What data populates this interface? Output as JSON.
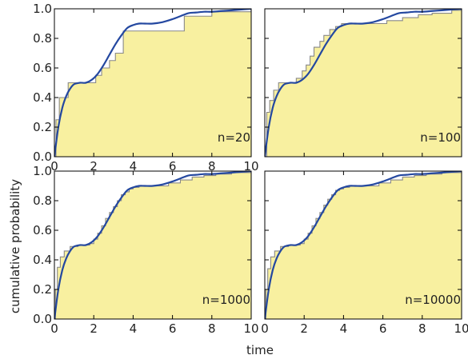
{
  "figure": {
    "xlabel": "time",
    "ylabel": "cumulative probability"
  },
  "colors": {
    "fill": "#f8f0a0",
    "step": "#888888",
    "cdf": "#2448a0",
    "axes": "#000000"
  },
  "chart_data": [
    {
      "type": "area",
      "annotation": "n=20",
      "xlim": [
        0,
        10
      ],
      "ylim": [
        0,
        1
      ],
      "xticks": [
        "0",
        "2",
        "4",
        "6",
        "8",
        "10"
      ],
      "yticks": [
        "0.0",
        "0.2",
        "0.4",
        "0.6",
        "0.8",
        "1.0"
      ],
      "grid": false,
      "empirical_cdf": {
        "x": [
          0,
          0.08,
          0.25,
          0.7,
          1.8,
          2.1,
          2.4,
          2.8,
          3.1,
          3.5,
          4.6,
          6.6,
          7.4,
          8.0,
          10
        ],
        "y": [
          0,
          0.25,
          0.4,
          0.5,
          0.5,
          0.55,
          0.6,
          0.65,
          0.7,
          0.85,
          0.85,
          0.95,
          0.95,
          0.98,
          1.0
        ]
      },
      "true_cdf": {
        "x": [
          0,
          0.2,
          0.4,
          0.6,
          0.8,
          1.0,
          1.3,
          1.6,
          1.9,
          2.2,
          2.5,
          2.8,
          3.1,
          3.4,
          3.7,
          4.0,
          4.3,
          4.6,
          5.0,
          5.5,
          6.0,
          6.4,
          6.8,
          7.2,
          7.6,
          8.0,
          8.5,
          9.0,
          9.5,
          10.0
        ],
        "y": [
          0,
          0.2,
          0.33,
          0.41,
          0.46,
          0.49,
          0.5,
          0.5,
          0.52,
          0.56,
          0.62,
          0.69,
          0.76,
          0.82,
          0.87,
          0.89,
          0.9,
          0.9,
          0.9,
          0.91,
          0.93,
          0.95,
          0.97,
          0.975,
          0.98,
          0.98,
          0.985,
          0.99,
          0.995,
          1.0
        ]
      }
    },
    {
      "type": "area",
      "annotation": "n=100",
      "xlim": [
        0,
        10
      ],
      "ylim": [
        0,
        1
      ],
      "xticks": [],
      "yticks": [],
      "grid": false,
      "empirical_cdf": {
        "x": [
          0,
          0.1,
          0.25,
          0.45,
          0.7,
          1.3,
          1.6,
          1.9,
          2.1,
          2.3,
          2.5,
          2.8,
          3.0,
          3.3,
          3.6,
          3.9,
          4.3,
          5.5,
          6.2,
          7.0,
          7.8,
          8.5,
          9.5,
          10
        ],
        "y": [
          0,
          0.3,
          0.38,
          0.45,
          0.5,
          0.5,
          0.53,
          0.58,
          0.62,
          0.68,
          0.74,
          0.78,
          0.82,
          0.86,
          0.88,
          0.9,
          0.9,
          0.9,
          0.92,
          0.94,
          0.96,
          0.97,
          0.99,
          1.0
        ]
      },
      "true_cdf": {
        "x": [
          0,
          0.2,
          0.4,
          0.6,
          0.8,
          1.0,
          1.3,
          1.6,
          1.9,
          2.2,
          2.5,
          2.8,
          3.1,
          3.4,
          3.7,
          4.0,
          4.3,
          4.6,
          5.0,
          5.5,
          6.0,
          6.4,
          6.8,
          7.2,
          7.6,
          8.0,
          8.5,
          9.0,
          9.5,
          10.0
        ],
        "y": [
          0,
          0.2,
          0.33,
          0.41,
          0.46,
          0.49,
          0.5,
          0.5,
          0.52,
          0.56,
          0.62,
          0.69,
          0.76,
          0.82,
          0.87,
          0.89,
          0.9,
          0.9,
          0.9,
          0.91,
          0.93,
          0.95,
          0.97,
          0.975,
          0.98,
          0.98,
          0.985,
          0.99,
          0.995,
          1.0
        ]
      }
    },
    {
      "type": "area",
      "annotation": "n=1000",
      "xlim": [
        0,
        10
      ],
      "ylim": [
        0,
        1
      ],
      "xticks": [
        "0",
        "2",
        "4",
        "6",
        "8",
        "10"
      ],
      "yticks": [
        "0.0",
        "0.2",
        "0.4",
        "0.6",
        "0.8",
        "1.0"
      ],
      "grid": false,
      "empirical_cdf": {
        "x": [
          0,
          0.05,
          0.15,
          0.3,
          0.5,
          0.8,
          1.2,
          1.5,
          1.8,
          2.0,
          2.2,
          2.4,
          2.6,
          2.8,
          3.0,
          3.2,
          3.4,
          3.6,
          3.8,
          4.0,
          4.3,
          4.7,
          5.2,
          5.8,
          6.4,
          7.0,
          7.6,
          8.2,
          9.0,
          10
        ],
        "y": [
          0,
          0.2,
          0.35,
          0.42,
          0.46,
          0.49,
          0.5,
          0.5,
          0.51,
          0.54,
          0.58,
          0.63,
          0.68,
          0.72,
          0.76,
          0.8,
          0.84,
          0.86,
          0.88,
          0.89,
          0.9,
          0.9,
          0.9,
          0.92,
          0.94,
          0.96,
          0.97,
          0.98,
          0.99,
          1.0
        ]
      },
      "true_cdf": {
        "x": [
          0,
          0.2,
          0.4,
          0.6,
          0.8,
          1.0,
          1.3,
          1.6,
          1.9,
          2.2,
          2.5,
          2.8,
          3.1,
          3.4,
          3.7,
          4.0,
          4.3,
          4.6,
          5.0,
          5.5,
          6.0,
          6.4,
          6.8,
          7.2,
          7.6,
          8.0,
          8.5,
          9.0,
          9.5,
          10.0
        ],
        "y": [
          0,
          0.2,
          0.33,
          0.41,
          0.46,
          0.49,
          0.5,
          0.5,
          0.52,
          0.56,
          0.62,
          0.69,
          0.76,
          0.82,
          0.87,
          0.89,
          0.9,
          0.9,
          0.9,
          0.91,
          0.93,
          0.95,
          0.97,
          0.975,
          0.98,
          0.98,
          0.985,
          0.99,
          0.995,
          1.0
        ]
      }
    },
    {
      "type": "area",
      "annotation": "n=10000",
      "xlim": [
        0,
        10
      ],
      "ylim": [
        0,
        1
      ],
      "xticks": [
        "0",
        "2",
        "4",
        "6",
        "8",
        "10"
      ],
      "yticks": [],
      "grid": false,
      "empirical_cdf": {
        "x": [
          0,
          0.05,
          0.15,
          0.3,
          0.5,
          0.8,
          1.2,
          1.5,
          1.8,
          2.0,
          2.2,
          2.4,
          2.6,
          2.8,
          3.0,
          3.2,
          3.4,
          3.6,
          3.8,
          4.0,
          4.3,
          4.7,
          5.2,
          5.8,
          6.4,
          7.0,
          7.6,
          8.2,
          9.0,
          10
        ],
        "y": [
          0,
          0.2,
          0.34,
          0.42,
          0.46,
          0.49,
          0.5,
          0.5,
          0.51,
          0.54,
          0.58,
          0.63,
          0.68,
          0.72,
          0.77,
          0.81,
          0.84,
          0.87,
          0.88,
          0.89,
          0.9,
          0.9,
          0.9,
          0.92,
          0.94,
          0.96,
          0.97,
          0.98,
          0.99,
          1.0
        ]
      },
      "true_cdf": {
        "x": [
          0,
          0.2,
          0.4,
          0.6,
          0.8,
          1.0,
          1.3,
          1.6,
          1.9,
          2.2,
          2.5,
          2.8,
          3.1,
          3.4,
          3.7,
          4.0,
          4.3,
          4.6,
          5.0,
          5.5,
          6.0,
          6.4,
          6.8,
          7.2,
          7.6,
          8.0,
          8.5,
          9.0,
          9.5,
          10.0
        ],
        "y": [
          0,
          0.2,
          0.33,
          0.41,
          0.46,
          0.49,
          0.5,
          0.5,
          0.52,
          0.56,
          0.62,
          0.69,
          0.76,
          0.82,
          0.87,
          0.89,
          0.9,
          0.9,
          0.9,
          0.91,
          0.93,
          0.95,
          0.97,
          0.975,
          0.98,
          0.98,
          0.985,
          0.99,
          0.995,
          1.0
        ]
      }
    }
  ]
}
